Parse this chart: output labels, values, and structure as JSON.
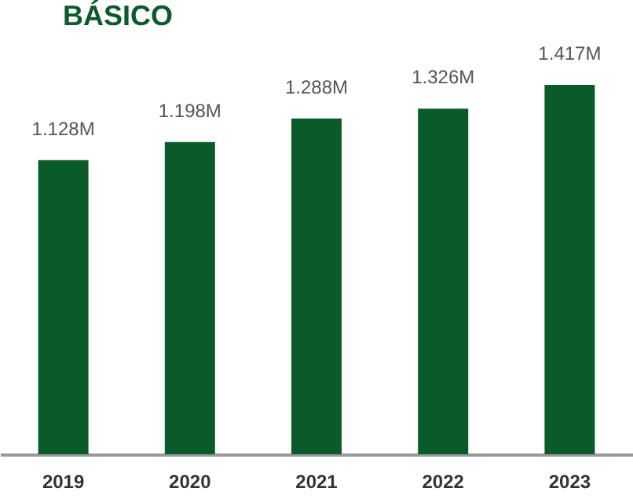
{
  "chart_data": {
    "type": "bar",
    "title": "BÁSICO",
    "categories": [
      "2019",
      "2020",
      "2021",
      "2022",
      "2023"
    ],
    "values": [
      1.128,
      1.198,
      1.288,
      1.326,
      1.417
    ],
    "value_labels": [
      "1.128M",
      "1.198M",
      "1.288M",
      "1.326M",
      "1.417M"
    ],
    "color": "#0b5a2a",
    "tick_labels": "x"
  }
}
